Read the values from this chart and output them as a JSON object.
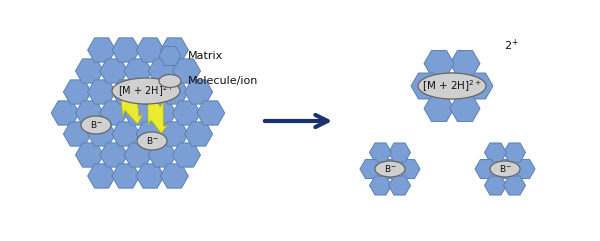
{
  "hex_color": "#7B9FD4",
  "hex_edge_color": "#5a80b5",
  "molecule_color": "#d0d0d0",
  "molecule_edge_color": "#666666",
  "lightning_color": "#eaea30",
  "lightning_edge_color": "#b0b000",
  "arrow_color": "#1a3070",
  "text_color": "#111111",
  "background": "#ffffff",
  "label_M2H": "[M + 2H]$^{2+}$",
  "label_B": "B$^{-}$",
  "label_2plus": "2$^{+}$",
  "legend_matrix": "Matrix",
  "legend_molecule": "Molecule/ion",
  "figsize": [
    6.0,
    2.41
  ],
  "dpi": 100
}
